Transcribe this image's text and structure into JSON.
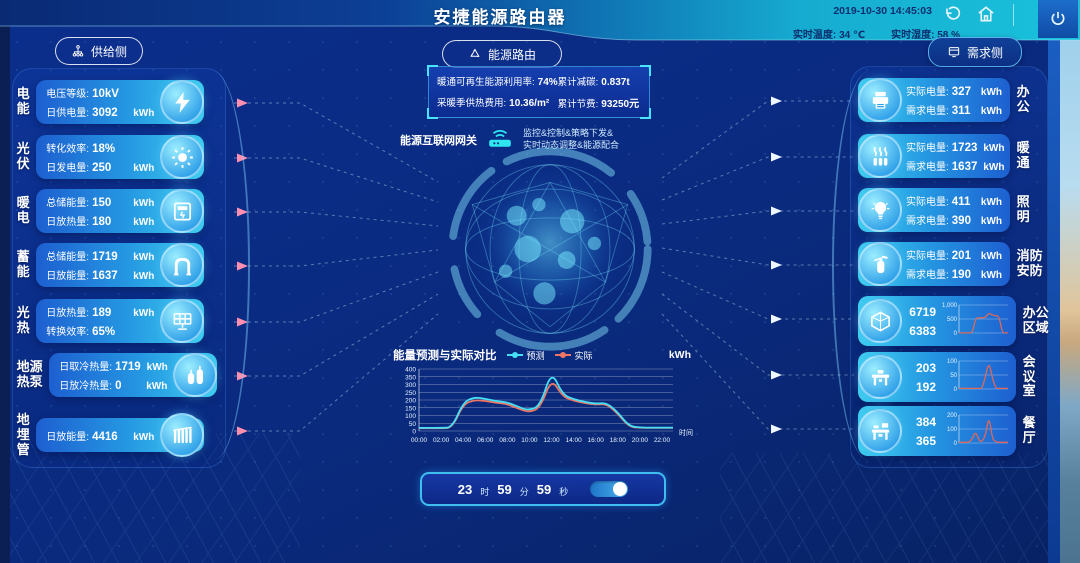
{
  "header": {
    "title": "安捷能源路由器",
    "datetime": "2019-10-30 14:45:03",
    "temperature_label": "实时温度:",
    "temperature_value": "34 ℃",
    "humidity_label": "实时湿度:",
    "humidity_value": "58 %"
  },
  "buttons": {
    "supply_label": "供给侧",
    "router_label": "能源路由",
    "demand_label": "需求侧"
  },
  "summary": {
    "rows": [
      {
        "label": "暖通可再生能源利用率:",
        "value": "74%"
      },
      {
        "label": "累计减碳:",
        "value": "0.837t"
      },
      {
        "label": "采暖季供热费用:",
        "value": "10.36/m²"
      },
      {
        "label": "累计节费:",
        "value": "93250元"
      }
    ]
  },
  "gateway": {
    "label": "能源互联网网关",
    "desc_line1": "监控&控制&策略下发&",
    "desc_line2": "实时动态调整&能源配合"
  },
  "supply_side": {
    "items": [
      {
        "name": "电能",
        "icon": "lightning-icon",
        "lines": [
          {
            "label": "电压等级:",
            "value": "10kV",
            "unit": ""
          },
          {
            "label": "日供电量:",
            "value": "3092",
            "unit": "kWh"
          }
        ]
      },
      {
        "name": "光伏",
        "icon": "sun-icon",
        "lines": [
          {
            "label": "转化效率:",
            "value": "18%",
            "unit": ""
          },
          {
            "label": "日发电量:",
            "value": "250",
            "unit": "kWh"
          }
        ]
      },
      {
        "name": "暖电",
        "icon": "meter-icon",
        "lines": [
          {
            "label": "总储能量:",
            "value": "150",
            "unit": "kWh"
          },
          {
            "label": "日放热量:",
            "value": "180",
            "unit": "kWh"
          }
        ]
      },
      {
        "name": "蓄能",
        "icon": "pipeline-icon",
        "lines": [
          {
            "label": "总储能量:",
            "value": "1719",
            "unit": "kWh"
          },
          {
            "label": "日放能量:",
            "value": "1637",
            "unit": "kWh"
          }
        ]
      },
      {
        "name": "光热",
        "icon": "solar-panel-icon",
        "lines": [
          {
            "label": "日放热量:",
            "value": "189",
            "unit": "kWh"
          },
          {
            "label": "转换效率:",
            "value": "65%",
            "unit": ""
          }
        ]
      },
      {
        "name": "地源热泵",
        "icon": "heat-pump-icon",
        "lines": [
          {
            "label": "日取冷热量:",
            "value": "1719",
            "unit": "kWh"
          },
          {
            "label": "日放冷热量:",
            "value": "0",
            "unit": "kWh"
          }
        ]
      },
      {
        "name": "地埋管",
        "icon": "radiator-icon",
        "lines": [
          {
            "label": "日放能量:",
            "value": "4416",
            "unit": "kWh"
          }
        ]
      }
    ]
  },
  "demand_side": {
    "items": [
      {
        "name": "办公",
        "icon": "printer-icon",
        "lines": [
          {
            "label": "实际电量:",
            "value": "327",
            "unit": "kWh"
          },
          {
            "label": "需求电量:",
            "value": "311",
            "unit": "kWh"
          }
        ]
      },
      {
        "name": "暖通",
        "icon": "heating-icon",
        "lines": [
          {
            "label": "实际电量:",
            "value": "1723",
            "unit": "kWh"
          },
          {
            "label": "需求电量:",
            "value": "1637",
            "unit": "kWh"
          }
        ]
      },
      {
        "name": "照明",
        "icon": "bulb-icon",
        "lines": [
          {
            "label": "实际电量:",
            "value": "411",
            "unit": "kWh"
          },
          {
            "label": "需求电量:",
            "value": "390",
            "unit": "kWh"
          }
        ]
      },
      {
        "name": "消防安防",
        "icon": "extinguisher-icon",
        "lines": [
          {
            "label": "实际电量:",
            "value": "201",
            "unit": "kWh"
          },
          {
            "label": "需求电量:",
            "value": "190",
            "unit": "kWh"
          }
        ]
      },
      {
        "name": "办公区域",
        "icon": "building-icon",
        "values": [
          "6719",
          "6383"
        ],
        "mini_chart": {
          "y_ticks": [
            "1,000",
            "500",
            "0"
          ],
          "ymax": 1000,
          "color": "#e06858",
          "points": [
            5,
            5,
            5,
            5,
            5,
            530,
            545,
            540,
            560,
            720,
            640,
            615,
            600,
            5,
            5,
            5
          ]
        }
      },
      {
        "name": "会议室",
        "icon": "meeting-desk-icon",
        "values": [
          "203",
          "192"
        ],
        "mini_chart": {
          "y_ticks": [
            "100",
            "50",
            "0"
          ],
          "ymax": 100,
          "color": "#e06858",
          "points": [
            2,
            2,
            2,
            2,
            2,
            2,
            2,
            2,
            50,
            96,
            40,
            2,
            2,
            2,
            2,
            2
          ]
        }
      },
      {
        "name": "餐厅",
        "icon": "dining-desk-icon",
        "values": [
          "384",
          "365"
        ],
        "mini_chart": {
          "y_ticks": [
            "200",
            "100",
            "0"
          ],
          "ymax": 200,
          "color": "#e06858",
          "points": [
            5,
            5,
            5,
            5,
            30,
            85,
            15,
            10,
            60,
            195,
            30,
            8,
            5,
            5,
            5,
            5
          ]
        }
      }
    ]
  },
  "chart_data": {
    "type": "line",
    "title": "能量预测与实际对比",
    "unit": "kWh",
    "x_axis_label": "时间",
    "ymax": 400,
    "y_ticks": [
      400,
      350,
      300,
      250,
      200,
      150,
      100,
      50,
      0
    ],
    "x_labels": [
      "00:00",
      "02:00",
      "04:00",
      "06:00",
      "08:00",
      "10:00",
      "12:00",
      "14:00",
      "16:00",
      "18:00",
      "20:00",
      "22:00"
    ],
    "legend_position": "top",
    "series": [
      {
        "name": "预测",
        "color": "#45e0f5",
        "values": [
          20,
          20,
          20,
          22,
          185,
          218,
          208,
          192,
          185,
          155,
          132,
          168,
          390,
          235,
          205,
          188,
          176,
          182,
          120,
          32,
          22,
          22,
          22,
          22
        ]
      },
      {
        "name": "实际",
        "color": "#ef7565",
        "values": [
          18,
          18,
          18,
          20,
          172,
          200,
          194,
          182,
          174,
          144,
          120,
          152,
          340,
          222,
          196,
          180,
          170,
          175,
          112,
          28,
          20,
          20,
          20,
          20
        ]
      }
    ]
  },
  "time_control": {
    "hour": "23",
    "hour_unit": "时",
    "minute": "59",
    "minute_unit": "分",
    "second": "59",
    "second_unit": "秒",
    "toggle_state": "on"
  }
}
